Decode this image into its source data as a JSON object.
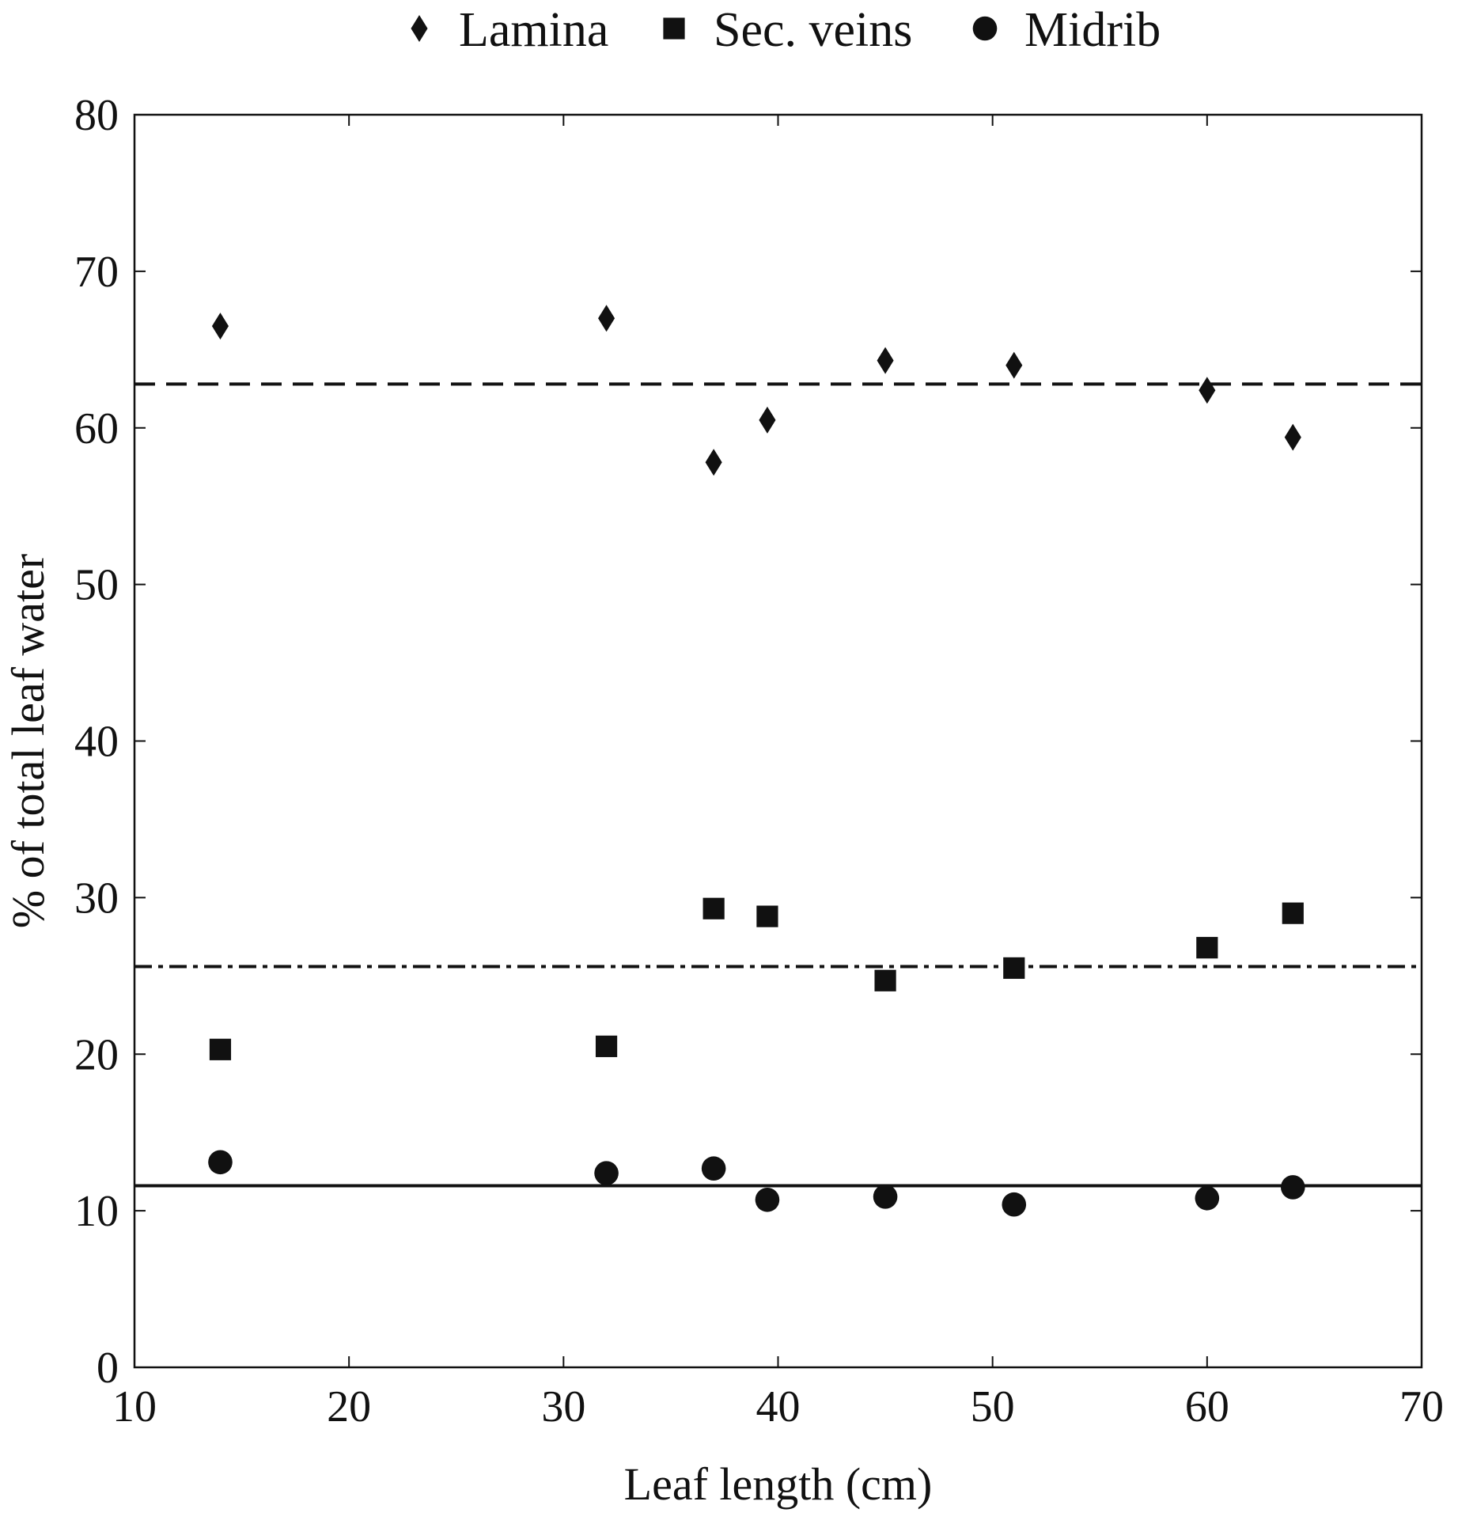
{
  "chart_data": {
    "type": "scatter",
    "xlabel": "Leaf length (cm)",
    "ylabel": "% of total leaf water",
    "xlim": [
      10,
      70
    ],
    "ylim": [
      0,
      80
    ],
    "xticks": [
      10,
      20,
      30,
      40,
      50,
      60,
      70
    ],
    "yticks": [
      0,
      10,
      20,
      30,
      40,
      50,
      60,
      70,
      80
    ],
    "grid": false,
    "legend_position": "top",
    "series": [
      {
        "name": "Lamina",
        "marker": "diamond",
        "color": "#111111",
        "points": [
          {
            "x": 14,
            "y": 66.5
          },
          {
            "x": 32,
            "y": 67.0
          },
          {
            "x": 37,
            "y": 57.8
          },
          {
            "x": 39.5,
            "y": 60.5
          },
          {
            "x": 45,
            "y": 64.3
          },
          {
            "x": 51,
            "y": 64.0
          },
          {
            "x": 60,
            "y": 62.4
          },
          {
            "x": 64,
            "y": 59.4
          }
        ],
        "mean_line": {
          "y": 62.8,
          "style": "dashed"
        }
      },
      {
        "name": "Sec. veins",
        "marker": "square",
        "color": "#111111",
        "points": [
          {
            "x": 14,
            "y": 20.3
          },
          {
            "x": 32,
            "y": 20.5
          },
          {
            "x": 37,
            "y": 29.3
          },
          {
            "x": 39.5,
            "y": 28.8
          },
          {
            "x": 45,
            "y": 24.7
          },
          {
            "x": 51,
            "y": 25.5
          },
          {
            "x": 60,
            "y": 26.8
          },
          {
            "x": 64,
            "y": 29.0
          }
        ],
        "mean_line": {
          "y": 25.6,
          "style": "dash-dot"
        }
      },
      {
        "name": "Midrib",
        "marker": "circle",
        "color": "#111111",
        "points": [
          {
            "x": 14,
            "y": 13.1
          },
          {
            "x": 32,
            "y": 12.4
          },
          {
            "x": 37,
            "y": 12.7
          },
          {
            "x": 39.5,
            "y": 10.7
          },
          {
            "x": 45,
            "y": 10.9
          },
          {
            "x": 51,
            "y": 10.4
          },
          {
            "x": 60,
            "y": 10.8
          },
          {
            "x": 64,
            "y": 11.5
          }
        ],
        "mean_line": {
          "y": 11.6,
          "style": "solid"
        }
      }
    ]
  }
}
